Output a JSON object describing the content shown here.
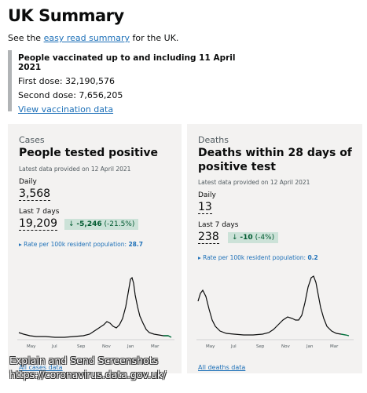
{
  "page": {
    "title": "UK Summary",
    "intro_prefix": "See the",
    "intro_link": "easy read summary",
    "intro_suffix": "for the UK."
  },
  "vaccinations": {
    "heading": "People vaccinated up to and including 11 April 2021",
    "first_dose": "First dose: 32,190,576",
    "second_dose": "Second dose: 7,656,205",
    "link": "View vaccination data"
  },
  "cases": {
    "category": "Cases",
    "title": "People tested positive",
    "latest": "Latest data provided on 12 April 2021",
    "daily_label": "Daily",
    "daily_value": "3,568",
    "week_label": "Last 7 days",
    "week_value": "19,209",
    "change_arrow": "↓",
    "change_value": "-5,246",
    "change_pct": "(-21.5%)",
    "rate_label": "Rate per 100k resident population:",
    "rate_value": "28.7",
    "link": "All cases data",
    "x_ticks": [
      "May",
      "Jul",
      "Sep",
      "Nov",
      "Jan",
      "Mar"
    ],
    "line_color": "#0b0c0c",
    "end_color": "#00703c"
  },
  "deaths": {
    "category": "Deaths",
    "title": "Deaths within 28 days of positive test",
    "latest": "Latest data provided on 12 April 2021",
    "daily_label": "Daily",
    "daily_value": "13",
    "week_label": "Last 7 days",
    "week_value": "238",
    "change_arrow": "↓",
    "change_value": "-10",
    "change_pct": "(-4%)",
    "rate_label": "Rate per 100k resident population:",
    "rate_value": "0.2",
    "link": "All deaths data",
    "x_ticks": [
      "May",
      "Jul",
      "Sep",
      "Nov",
      "Jan",
      "Mar"
    ],
    "line_color": "#0b0c0c",
    "end_color": "#00703c"
  },
  "watermark": {
    "line1": "Explain and Send Screenshots",
    "line2": "https://coronavirus.data.gov.uk/"
  },
  "colors": {
    "link": "#1d70b8",
    "card_bg": "#f3f2f1",
    "change_bg": "#cce2d8",
    "change_text": "#005a30"
  }
}
